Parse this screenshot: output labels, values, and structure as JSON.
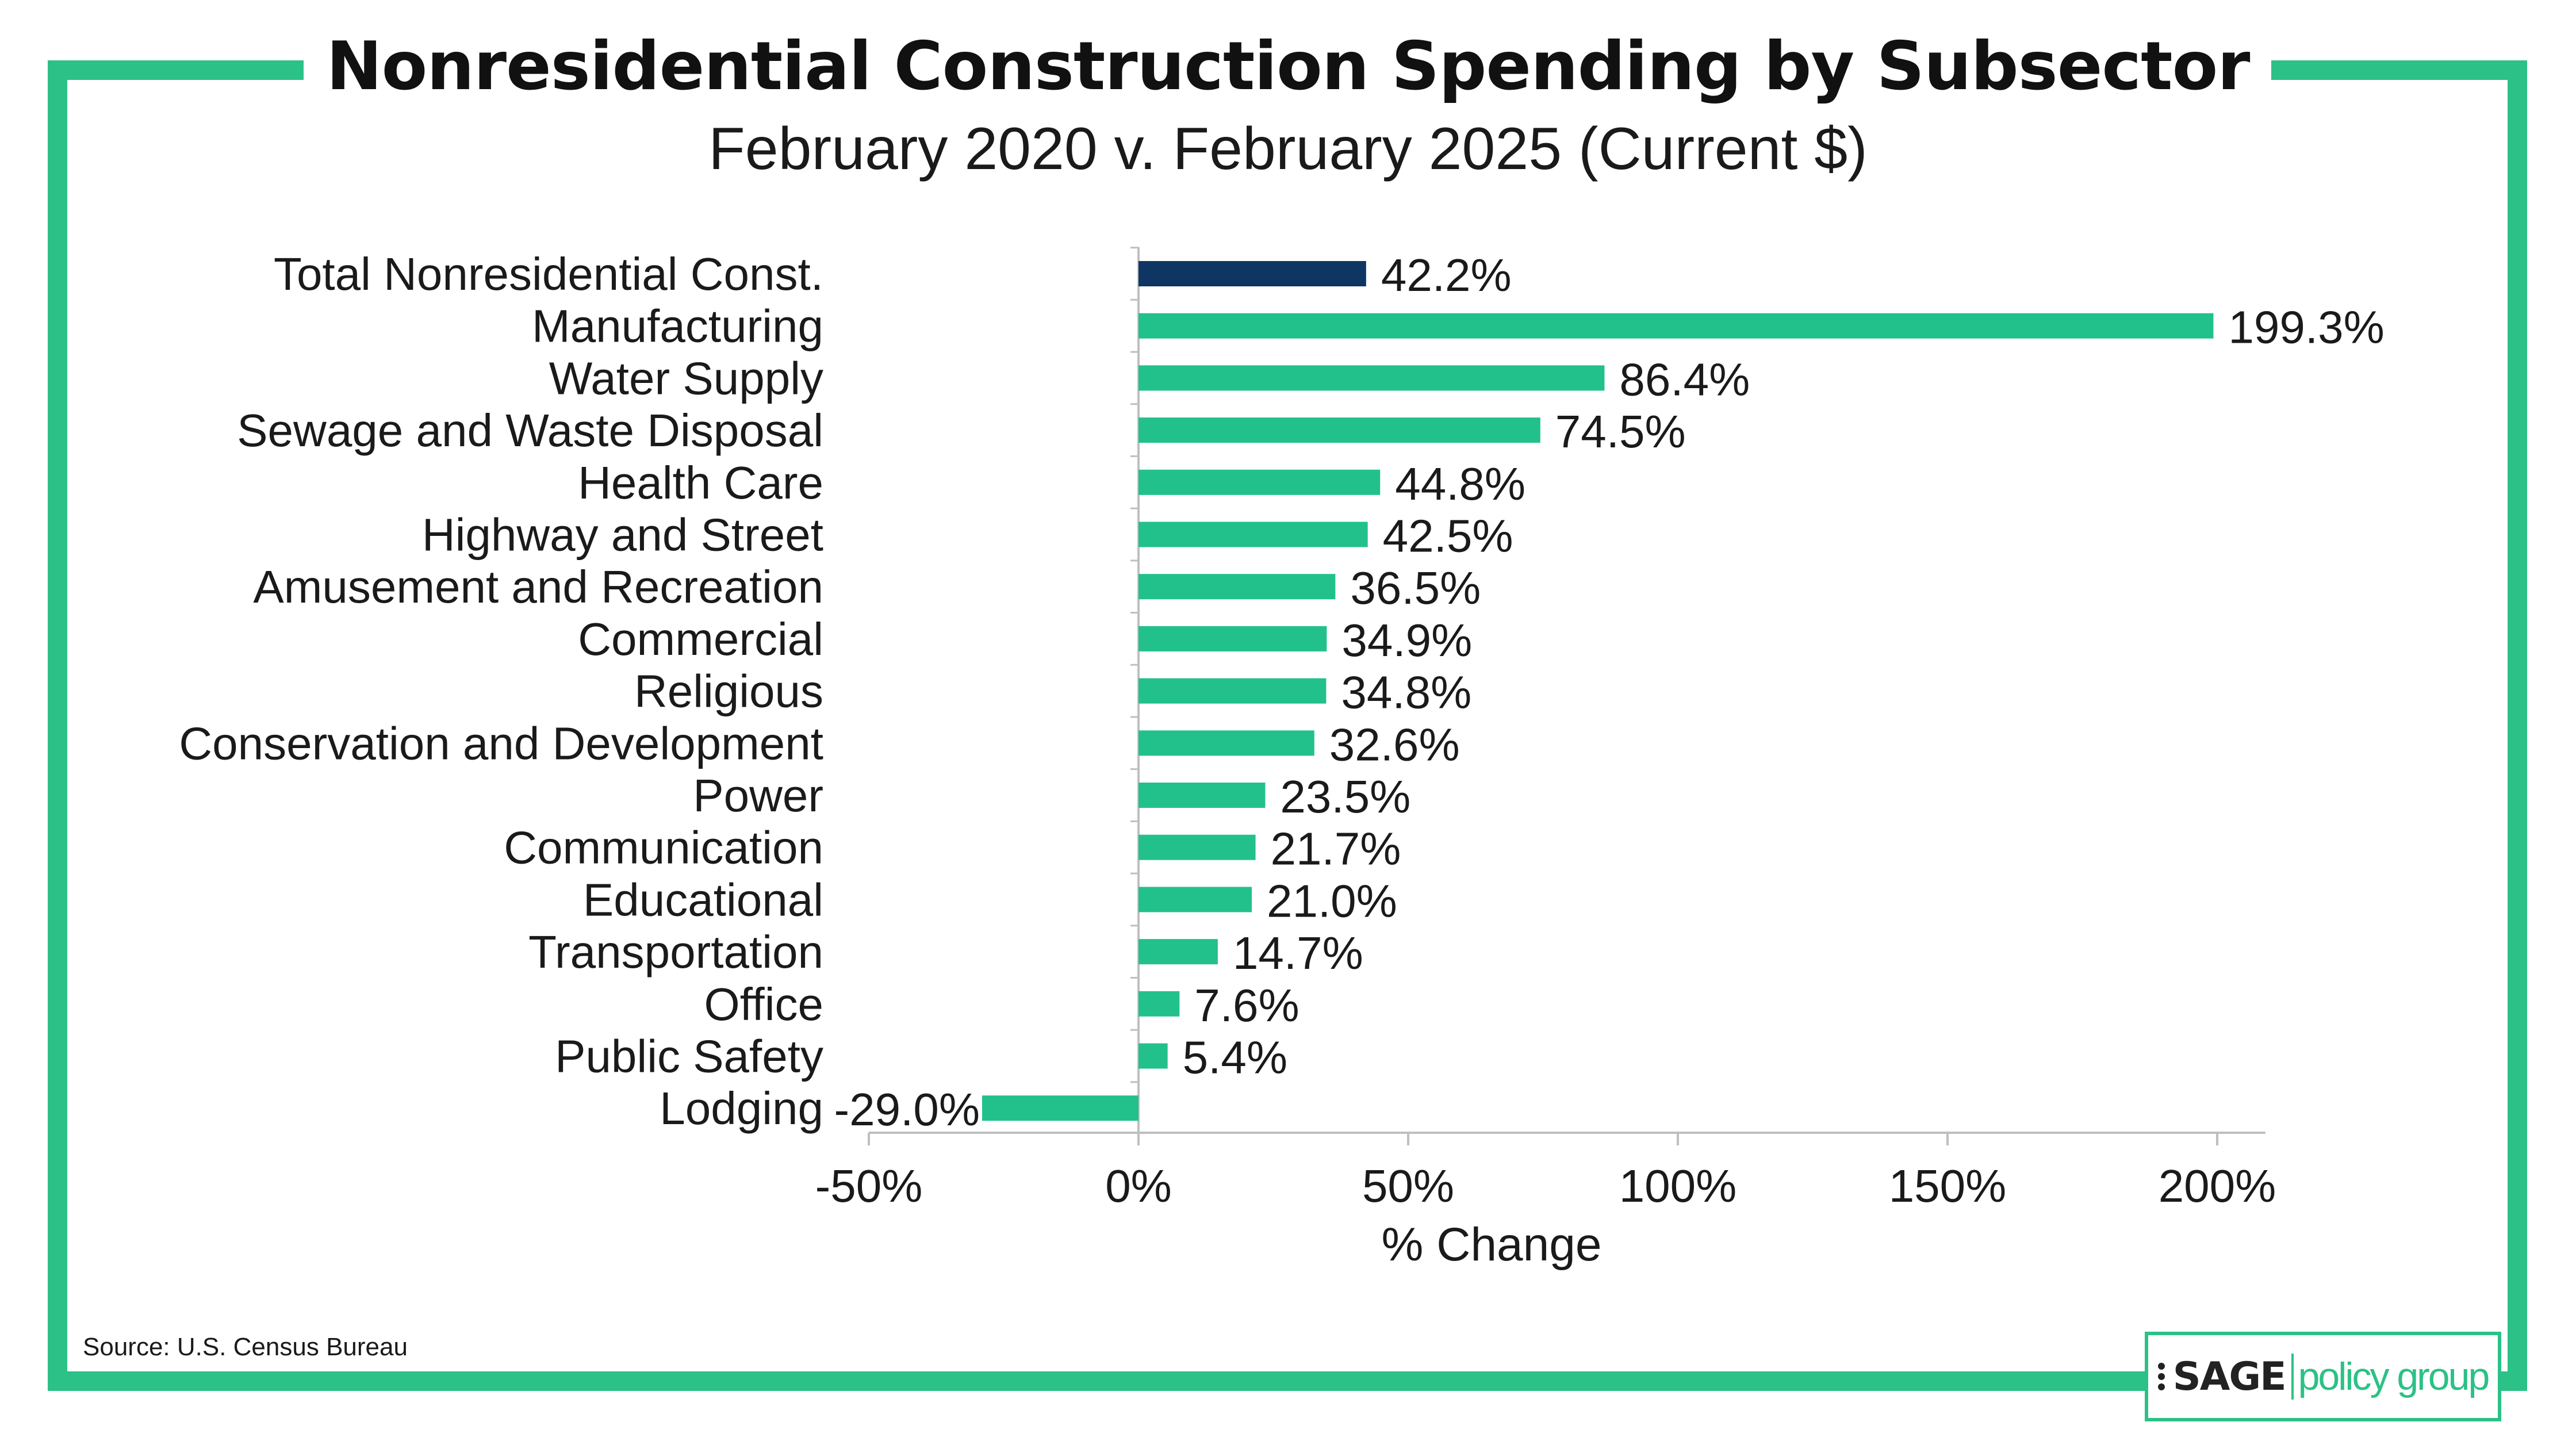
{
  "title": "Nonresidential Construction Spending by Subsector",
  "subtitle": "February 2020 v. February 2025 (Current $)",
  "source": "Source: U.S. Census Bureau",
  "logo": {
    "text_bold": "SAGE",
    "text_light": "policy group"
  },
  "colors": {
    "frame": "#2cc186",
    "bar_total": "#0f3562",
    "bar_default": "#22c18b",
    "axis": "#bfbfbf"
  },
  "chart_data": {
    "type": "bar",
    "orientation": "horizontal",
    "categories": [
      "Total Nonresidential Const.",
      "Manufacturing",
      "Water Supply",
      "Sewage and Waste Disposal",
      "Health Care",
      "Highway and Street",
      "Amusement and Recreation",
      "Commercial",
      "Religious",
      "Conservation and Development",
      "Power",
      "Communication",
      "Educational",
      "Transportation",
      "Office",
      "Public Safety",
      "Lodging"
    ],
    "values": [
      42.2,
      199.3,
      86.4,
      74.5,
      44.8,
      42.5,
      36.5,
      34.9,
      34.8,
      32.6,
      23.5,
      21.7,
      21.0,
      14.7,
      7.6,
      5.4,
      -29.0
    ],
    "value_labels": [
      "42.2%",
      "199.3%",
      "86.4%",
      "74.5%",
      "44.8%",
      "42.5%",
      "36.5%",
      "34.9%",
      "34.8%",
      "32.6%",
      "23.5%",
      "21.7%",
      "21.0%",
      "14.7%",
      "7.6%",
      "5.4%",
      "-29.0%"
    ],
    "highlight_index": 0,
    "xlim": [
      -50,
      210
    ],
    "xticks": [
      -50,
      0,
      50,
      100,
      150,
      200
    ],
    "xtick_labels": [
      "-50%",
      "0%",
      "50%",
      "100%",
      "150%",
      "200%"
    ],
    "xlabel": "% Change",
    "ylabel": "",
    "grid": false,
    "legend": "none"
  }
}
